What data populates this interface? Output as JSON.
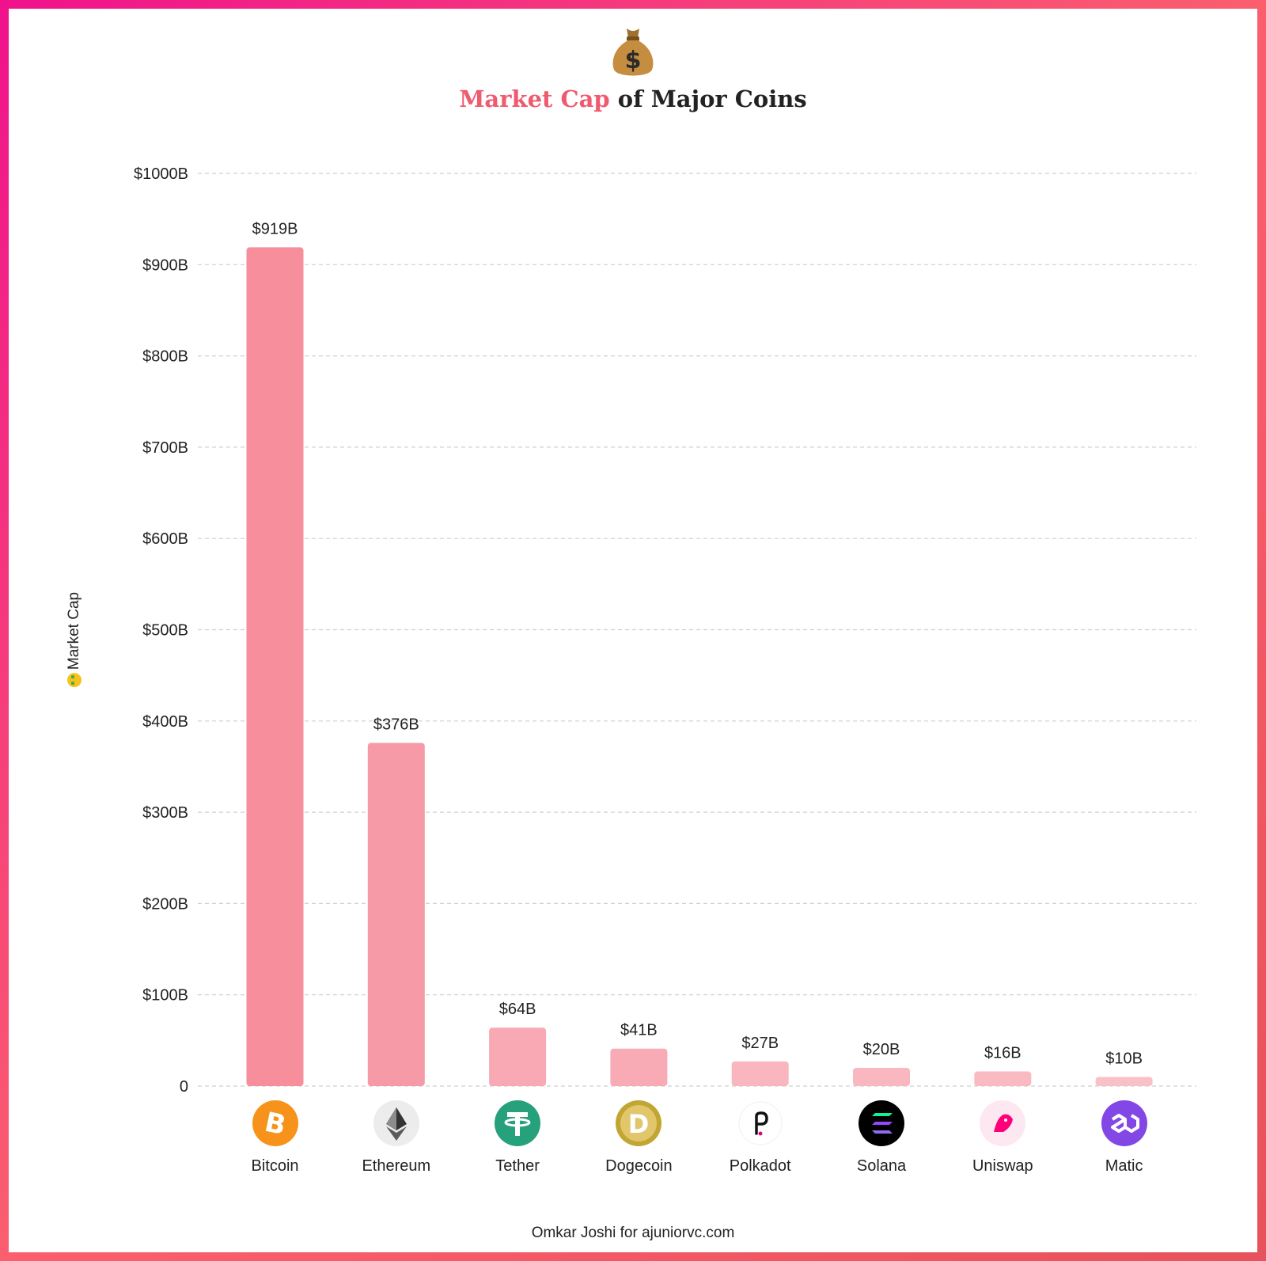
{
  "title": {
    "accent": "Market Cap",
    "rest": " of Major Coins"
  },
  "header_icon": "money-bag-icon",
  "y_axis_title": "Market Cap",
  "y_axis_emoji": "money-mouth-face-icon",
  "footer": "Omkar Joshi for ajuniorvc.com",
  "chart_data": {
    "type": "bar",
    "categories": [
      "Bitcoin",
      "Ethereum",
      "Tether",
      "Dogecoin",
      "Polkadot",
      "Solana",
      "Uniswap",
      "Matic"
    ],
    "values": [
      919,
      376,
      64,
      41,
      27,
      20,
      16,
      10
    ],
    "data_labels": [
      "$919B",
      "$376B",
      "$64B",
      "$41B",
      "$27B",
      "$20B",
      "$16B",
      "$10B"
    ],
    "ylim": [
      0,
      1000
    ],
    "y_ticks": [
      0,
      100,
      200,
      300,
      400,
      500,
      600,
      700,
      800,
      900,
      1000
    ],
    "y_tick_labels": [
      "0",
      "$100B",
      "$200B",
      "$300B",
      "$400B",
      "$500B",
      "$600B",
      "$700B",
      "$800B",
      "$900B",
      "$1000B"
    ],
    "ylabel": "Market Cap",
    "xlabel": "",
    "grid": "horizontal-dashed",
    "bar_colors": [
      "#f68e9c",
      "#f79aa7",
      "#f8a9b3",
      "#f8abb5",
      "#f9b6be",
      "#f9b8c0",
      "#f9bac2",
      "#fac0c7"
    ],
    "icons": [
      {
        "name": "bitcoin-icon",
        "bg": "#f7931a"
      },
      {
        "name": "ethereum-icon",
        "bg": "#ececec"
      },
      {
        "name": "tether-icon",
        "bg": "#26a17b"
      },
      {
        "name": "dogecoin-icon",
        "bg": "#c2a633"
      },
      {
        "name": "polkadot-icon",
        "bg": "#ffffff"
      },
      {
        "name": "solana-icon",
        "bg": "#000000"
      },
      {
        "name": "uniswap-icon",
        "bg": "#fde8f1"
      },
      {
        "name": "matic-icon",
        "bg": "#8247e5"
      }
    ]
  }
}
